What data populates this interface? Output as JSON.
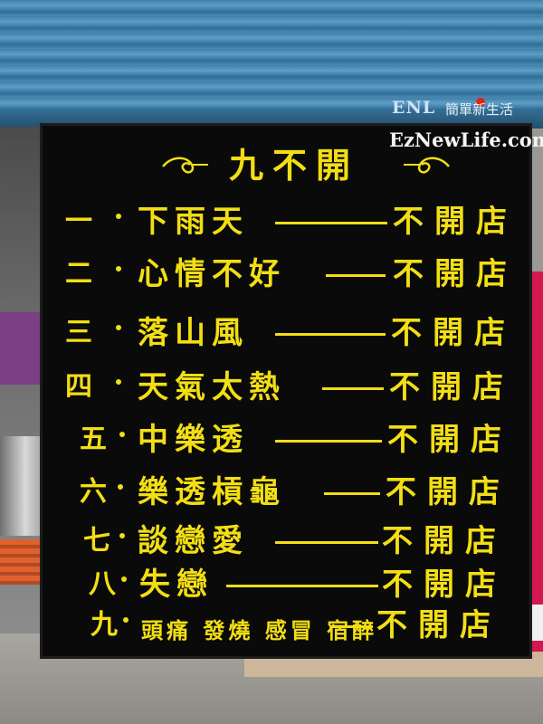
{
  "sign": {
    "title": "九不開",
    "rows": [
      {
        "num": "一",
        "cause": "下雨天",
        "result": "不開店"
      },
      {
        "num": "二",
        "cause": "心情不好",
        "result": "不開店"
      },
      {
        "num": "三",
        "cause": "落山風",
        "result": "不開店"
      },
      {
        "num": "四",
        "cause": "天氣太熱",
        "result": "不開店"
      },
      {
        "num": "五",
        "cause": "中樂透",
        "result": "不開店"
      },
      {
        "num": "六",
        "cause": "樂透槓龜",
        "result": "不開店"
      },
      {
        "num": "七",
        "cause": "談戀愛",
        "result": "不開店"
      },
      {
        "num": "八",
        "cause": "失戀",
        "result": "不開店"
      },
      {
        "num": "九",
        "cause": "頭痛 發燒 感冒 宿醉",
        "result": "不開店"
      }
    ],
    "text_color": "#f2de14",
    "board_color": "#0a0a0a"
  },
  "watermark": {
    "brand": "ENL",
    "brand_cn": "簡單新生活",
    "url": "EzNewLife.com"
  }
}
